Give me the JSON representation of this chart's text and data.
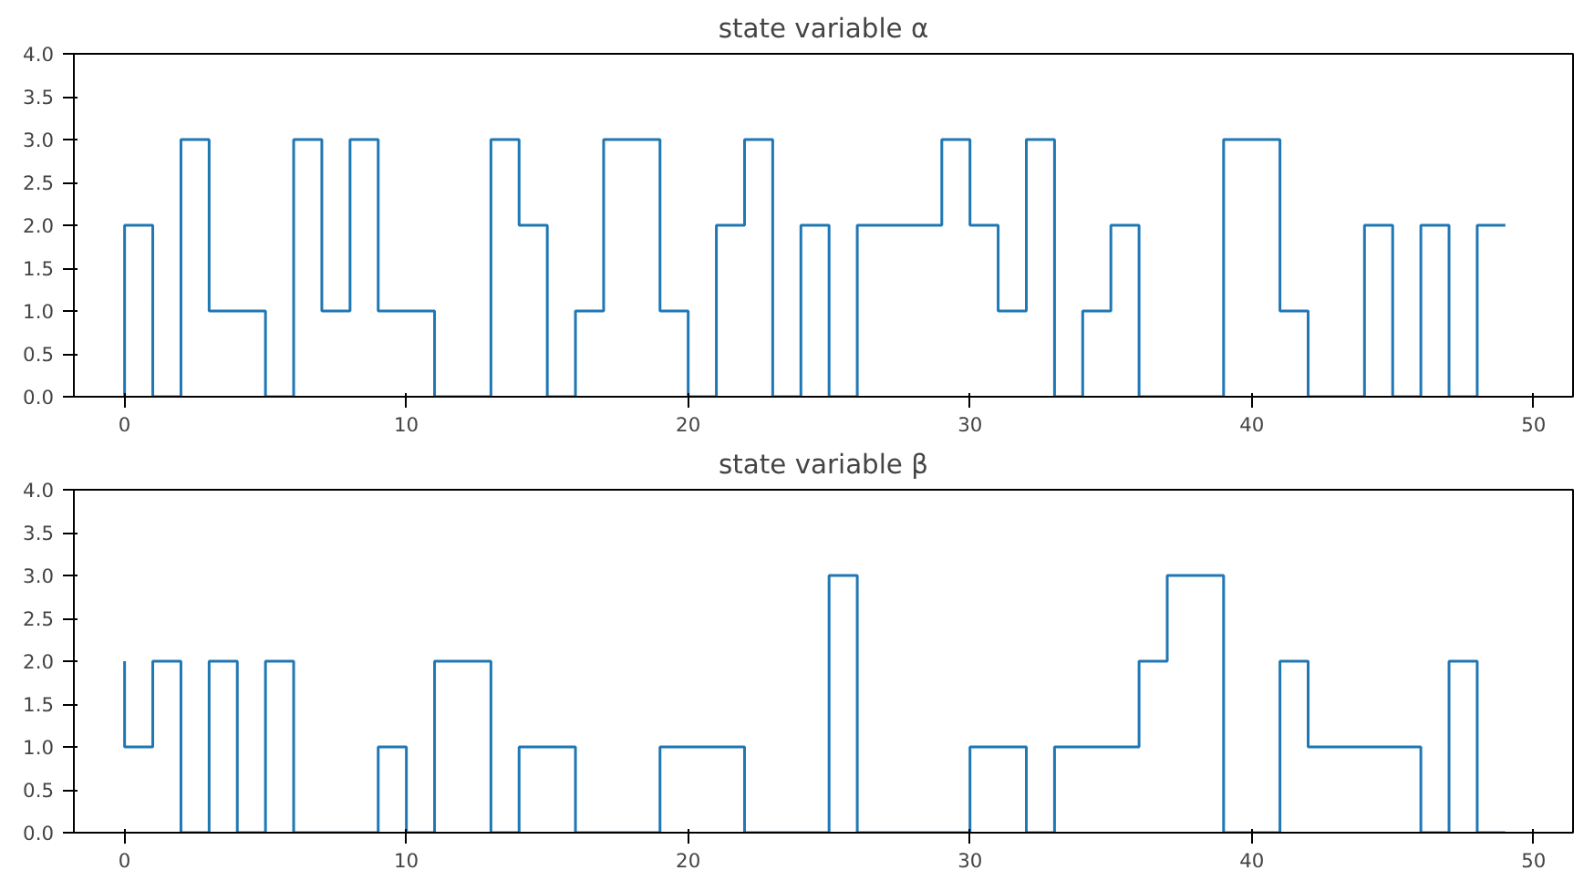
{
  "chart_data": [
    {
      "type": "step",
      "title": "state variable α",
      "x": [
        0,
        1,
        2,
        3,
        4,
        5,
        6,
        7,
        8,
        9,
        10,
        11,
        12,
        13,
        14,
        15,
        16,
        17,
        18,
        19,
        20,
        21,
        22,
        23,
        24,
        25,
        26,
        27,
        28,
        29,
        30,
        31,
        32,
        33,
        34,
        35,
        36,
        37,
        38,
        39,
        40,
        41,
        42,
        43,
        44,
        45,
        46,
        47,
        48,
        49
      ],
      "series": [
        {
          "color": "#1f77b4",
          "values": [
            0,
            2,
            0,
            3,
            1,
            1,
            0,
            3,
            1,
            3,
            1,
            1,
            0,
            0,
            3,
            2,
            0,
            1,
            3,
            3,
            1,
            0,
            2,
            3,
            0,
            2,
            0,
            2,
            2,
            2,
            3,
            2,
            1,
            3,
            0,
            1,
            2,
            0,
            0,
            0,
            3,
            3,
            1,
            0,
            0,
            2,
            0,
            2,
            0,
            2
          ]
        }
      ],
      "xlim": [
        -1.8,
        51.4
      ],
      "xticks": [
        0,
        10,
        20,
        30,
        40,
        50
      ],
      "ylim": [
        0,
        4
      ],
      "yticks": [
        {
          "value": 0,
          "label": "0.0"
        },
        {
          "value": 0.5,
          "label": "0.5"
        },
        {
          "value": 1,
          "label": "1.0"
        },
        {
          "value": 1.5,
          "label": "1.5"
        },
        {
          "value": 2,
          "label": "2.0"
        },
        {
          "value": 2.5,
          "label": "2.5"
        },
        {
          "value": 3,
          "label": "3.0"
        },
        {
          "value": 3.5,
          "label": "3.5"
        },
        {
          "value": 4,
          "label": "4.0"
        }
      ]
    },
    {
      "type": "step",
      "title": "state variable β",
      "x": [
        0,
        1,
        2,
        3,
        4,
        5,
        6,
        7,
        8,
        9,
        10,
        11,
        12,
        13,
        14,
        15,
        16,
        17,
        18,
        19,
        20,
        21,
        22,
        23,
        24,
        25,
        26,
        27,
        28,
        29,
        30,
        31,
        32,
        33,
        34,
        35,
        36,
        37,
        38,
        39,
        40,
        41,
        42,
        43,
        44,
        45,
        46,
        47,
        48,
        49
      ],
      "series": [
        {
          "color": "#1f77b4",
          "values": [
            2,
            1,
            2,
            0,
            2,
            0,
            2,
            0,
            0,
            0,
            1,
            0,
            2,
            2,
            0,
            1,
            1,
            0,
            0,
            0,
            1,
            1,
            1,
            0,
            0,
            0,
            3,
            0,
            0,
            0,
            0,
            1,
            1,
            0,
            1,
            1,
            1,
            2,
            3,
            3,
            0,
            0,
            2,
            1,
            1,
            1,
            1,
            0,
            2,
            0
          ]
        }
      ],
      "xlim": [
        -1.8,
        51.4
      ],
      "xticks": [
        0,
        10,
        20,
        30,
        40,
        50
      ],
      "ylim": [
        0,
        4
      ],
      "yticks": [
        {
          "value": 0,
          "label": "0.0"
        },
        {
          "value": 0.5,
          "label": "0.5"
        },
        {
          "value": 1,
          "label": "1.0"
        },
        {
          "value": 1.5,
          "label": "1.5"
        },
        {
          "value": 2,
          "label": "2.0"
        },
        {
          "value": 2.5,
          "label": "2.5"
        },
        {
          "value": 3,
          "label": "3.0"
        },
        {
          "value": 3.5,
          "label": "3.5"
        },
        {
          "value": 4,
          "label": "4.0"
        }
      ]
    }
  ]
}
